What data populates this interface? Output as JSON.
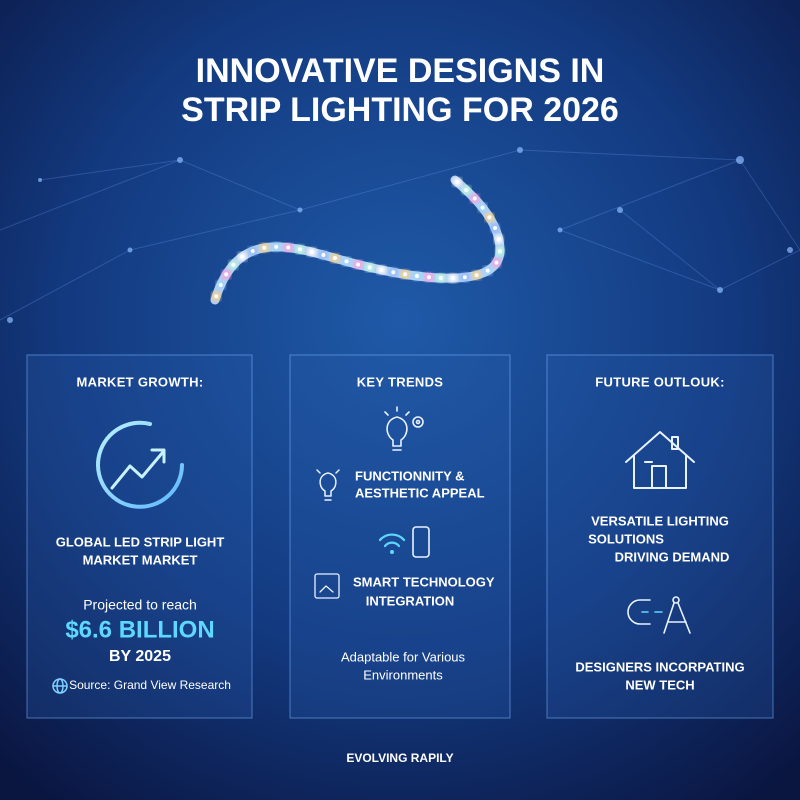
{
  "header": {
    "title": [
      "INNOVATIVE DESIGNS IN",
      "STRIP LIGHTING FOR 2026"
    ]
  },
  "panels": [
    {
      "heading": "MARKET GROWTH:",
      "label": [
        "GLOBAL LED STRIP LIGHT",
        "MARKET MARKET"
      ],
      "intro": "Projected to reach",
      "figure": "$6.6 BILLION",
      "year": "BY 2025",
      "source": "Source: Grand View Research"
    },
    {
      "heading": "KEY TRENDS",
      "trend_1": [
        "FUNCTIONNITY &",
        "AESTHETIC APPEAL"
      ],
      "trend_2": [
        "SMART TECHNOLOGY",
        "INTEGRATION"
      ],
      "note": [
        "Adaptable for Various",
        "Environments"
      ]
    },
    {
      "heading": "FUTURE OUTLOUK:",
      "point_1": [
        "VERSATILE LIGHTING",
        "SOLUTIONS",
        "DRIVING DEMAND"
      ],
      "point_2": [
        "DESIGNERS INCORPATING",
        "NEW TECH"
      ]
    }
  ],
  "footer": "EVOLVING RAPILY"
}
